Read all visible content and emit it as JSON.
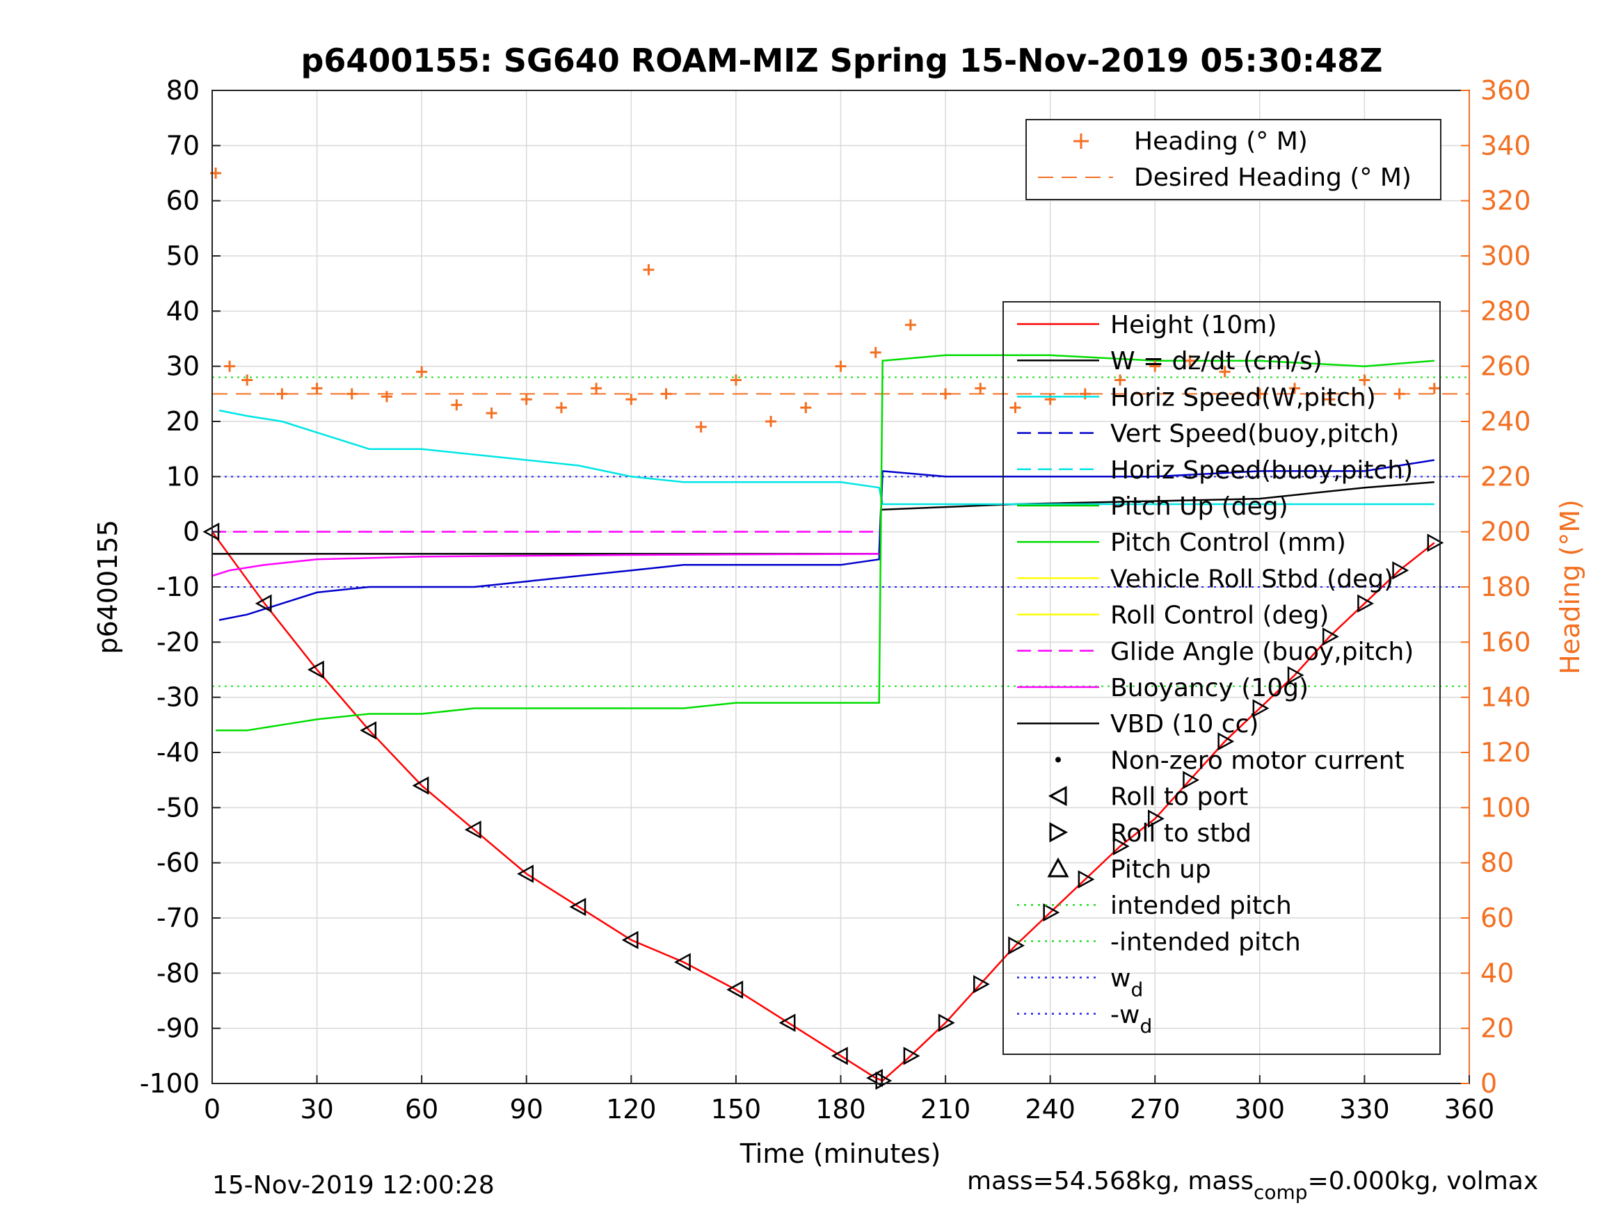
{
  "chart_data": {
    "type": "line",
    "title": "p6400155: SG640 ROAM-MIZ Spring 15-Nov-2019 05:30:48Z",
    "xlabel": "Time (minutes)",
    "ylabel": "p6400155",
    "y2label": "Heading (°M)",
    "xlim": [
      0,
      360
    ],
    "ylim": [
      -100,
      80
    ],
    "y2lim": [
      0,
      360
    ],
    "grid": true,
    "x_ticks": [
      0,
      30,
      60,
      90,
      120,
      150,
      180,
      210,
      240,
      270,
      300,
      330,
      360
    ],
    "y_ticks": [
      80,
      70,
      60,
      50,
      40,
      30,
      20,
      10,
      0,
      -10,
      -20,
      -30,
      -40,
      -50,
      -60,
      -70,
      -80,
      -90,
      -100
    ],
    "y2_ticks": [
      360,
      340,
      320,
      300,
      280,
      260,
      240,
      220,
      200,
      180,
      160,
      140,
      120,
      100,
      80,
      60,
      40,
      20,
      0
    ],
    "legend_top": {
      "placement": "top-right",
      "entries": [
        "Heading (° M)",
        "Desired Heading (° M)"
      ]
    },
    "legend_main": {
      "placement": "right",
      "entries": [
        "Height (10m)",
        "W = dz/dt (cm/s)",
        "Horiz Speed(W,pitch)",
        "Vert Speed(buoy,pitch)",
        "Horiz Speed(buoy,pitch)",
        "Pitch Up (deg)",
        "Pitch Control (mm)",
        "Vehicle Roll Stbd (deg)",
        "Roll Control (deg)",
        "Glide Angle (buoy,pitch)",
        "Buoyancy (10g)",
        "VBD (10 cc)",
        "Non-zero motor current",
        "Roll to port",
        "Roll to stbd",
        "Pitch up",
        "intended pitch",
        "-intended pitch",
        "w",
        "-w"
      ],
      "subscript_d": "d"
    },
    "colors": {
      "height": "#ff0000",
      "w": "#000000",
      "horiz_speed_w": "#00e5e5",
      "vert_speed_buoy": "#0000cc",
      "pitch_control": "#00dd00",
      "roll": "#ffff00",
      "glide": "#ff00ff",
      "heading": "#f36f21",
      "intended_pitch": "#22dd22",
      "wd": "#2222ee"
    },
    "reference_lines": {
      "intended_pitch": 28,
      "neg_intended_pitch": -28,
      "wd": 10,
      "neg_wd": -10,
      "desired_heading": 250
    },
    "series": [
      {
        "name": "Height (10m)",
        "x": [
          0,
          15,
          30,
          45,
          60,
          75,
          90,
          105,
          120,
          135,
          150,
          165,
          180,
          190,
          192,
          200,
          210,
          220,
          230,
          240,
          250,
          260,
          270,
          280,
          290,
          300,
          310,
          320,
          330,
          340,
          350
        ],
        "values": [
          0,
          -13,
          -25,
          -36,
          -46,
          -54,
          -62,
          -68,
          -74,
          -78,
          -83,
          -89,
          -95,
          -99,
          -99.5,
          -95,
          -89,
          -82,
          -75,
          -69,
          -63,
          -57,
          -52,
          -45,
          -38,
          -32,
          -26,
          -19,
          -13,
          -7,
          -2
        ]
      },
      {
        "name": "W = dz/dt (cm/s)",
        "x": [
          0,
          5,
          60,
          120,
          191,
          191.5,
          230,
          300,
          330,
          350
        ],
        "values": [
          -4,
          -4,
          -4,
          -4,
          -4,
          4,
          5,
          6,
          8,
          9
        ]
      },
      {
        "name": "Horiz Speed(W,pitch)",
        "x": [
          2,
          10,
          20,
          30,
          45,
          60,
          75,
          90,
          105,
          120,
          135,
          150,
          165,
          180,
          191,
          192,
          200,
          220,
          250,
          300,
          350
        ],
        "values": [
          22,
          21,
          20,
          18,
          15,
          15,
          14,
          13,
          12,
          10,
          9,
          9,
          9,
          9,
          8,
          5,
          5,
          5,
          5,
          5,
          5
        ]
      },
      {
        "name": "Vert Speed(buoy,pitch)",
        "x": [
          2,
          10,
          20,
          30,
          45,
          60,
          75,
          90,
          105,
          120,
          135,
          150,
          165,
          180,
          191,
          192,
          210,
          240,
          270,
          300,
          330,
          350
        ],
        "values": [
          -16,
          -15,
          -13,
          -11,
          -10,
          -10,
          -10,
          -9,
          -8,
          -7,
          -6,
          -6,
          -6,
          -6,
          -5,
          11,
          10,
          10,
          10,
          11,
          11,
          13
        ]
      },
      {
        "name": "Pitch Control (mm)",
        "x": [
          1,
          10,
          20,
          30,
          45,
          60,
          75,
          90,
          105,
          120,
          135,
          150,
          165,
          180,
          191,
          192,
          210,
          240,
          270,
          300,
          330,
          350
        ],
        "values": [
          -36,
          -36,
          -35,
          -34,
          -33,
          -33,
          -32,
          -32,
          -32,
          -32,
          -32,
          -31,
          -31,
          -31,
          -31,
          31,
          32,
          32,
          31,
          31,
          30,
          31
        ]
      },
      {
        "name": "Buoyancy (10g)",
        "x": [
          0,
          5,
          15,
          30,
          60,
          120,
          191
        ],
        "values": [
          -8,
          -7,
          -6,
          -5,
          -4.5,
          -4.2,
          -4
        ]
      },
      {
        "name": "Heading (° M)",
        "x": [
          1,
          5,
          10,
          20,
          30,
          40,
          50,
          60,
          70,
          80,
          90,
          100,
          110,
          120,
          125,
          130,
          140,
          150,
          160,
          170,
          180,
          190,
          200,
          210,
          220,
          230,
          240,
          250,
          260,
          270,
          280,
          290,
          300,
          310,
          320,
          330,
          340,
          350
        ],
        "values": [
          330,
          260,
          255,
          250,
          252,
          250,
          249,
          258,
          246,
          243,
          248,
          245,
          252,
          248,
          295,
          250,
          238,
          255,
          240,
          245,
          260,
          265,
          275,
          250,
          252,
          245,
          248,
          250,
          255,
          260,
          262,
          258,
          250,
          252,
          248,
          255,
          250,
          252
        ]
      }
    ],
    "markers": {
      "legend_symbols": [
        "Non-zero motor current",
        "Roll to port",
        "Roll to stbd",
        "Pitch up"
      ]
    },
    "footer_left": "15-Nov-2019 12:00:28",
    "footer_right_prefix": "mass=54.568kg, mass",
    "footer_right_sub": "comp",
    "footer_right_suffix": "=0.000kg, volmax"
  }
}
